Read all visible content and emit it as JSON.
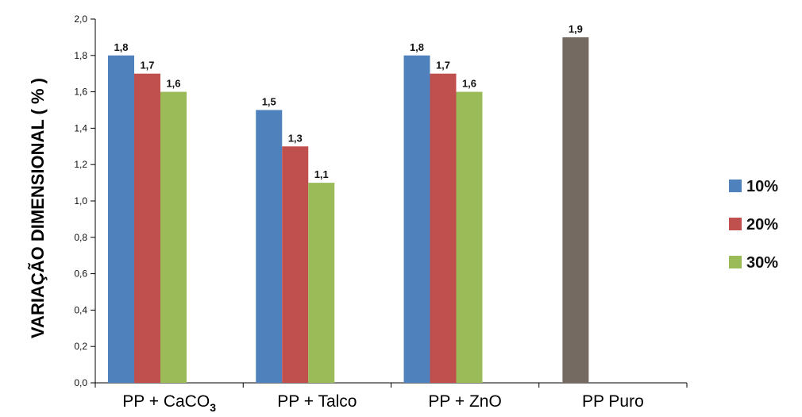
{
  "chart_data": {
    "type": "bar",
    "title": "",
    "xlabel": "",
    "ylabel": "VARIAÇÃO DIMENSIONAL ( % )",
    "ylim": [
      0,
      2.0
    ],
    "yticks": [
      "0,0",
      "0,2",
      "0,4",
      "0,6",
      "0,8",
      "1,0",
      "1,2",
      "1,4",
      "1,6",
      "1,8",
      "2,0"
    ],
    "grid": false,
    "legend_position": "right",
    "categories": [
      {
        "label": "PP + CaCO",
        "sub": "3"
      },
      {
        "label": "PP + Talco",
        "sub": ""
      },
      {
        "label": "PP + ZnO",
        "sub": ""
      },
      {
        "label": "PP Puro",
        "sub": ""
      }
    ],
    "series": [
      {
        "name": "10%",
        "color": "#4F81BD",
        "values": [
          1.8,
          1.5,
          1.8,
          null
        ],
        "labels": [
          "1,8",
          "1,5",
          "1,8",
          ""
        ]
      },
      {
        "name": "20%",
        "color": "#C0504D",
        "values": [
          1.7,
          1.3,
          1.7,
          null
        ],
        "labels": [
          "1,7",
          "1,3",
          "1,7",
          ""
        ]
      },
      {
        "name": "30%",
        "color": "#9BBB59",
        "values": [
          1.6,
          1.1,
          1.6,
          null
        ],
        "labels": [
          "1,6",
          "1,1",
          "1,6",
          ""
        ]
      }
    ],
    "extra_bars": [
      {
        "category_index": 3,
        "value": 1.9,
        "label": "1,9",
        "color": "#756A62"
      }
    ]
  }
}
